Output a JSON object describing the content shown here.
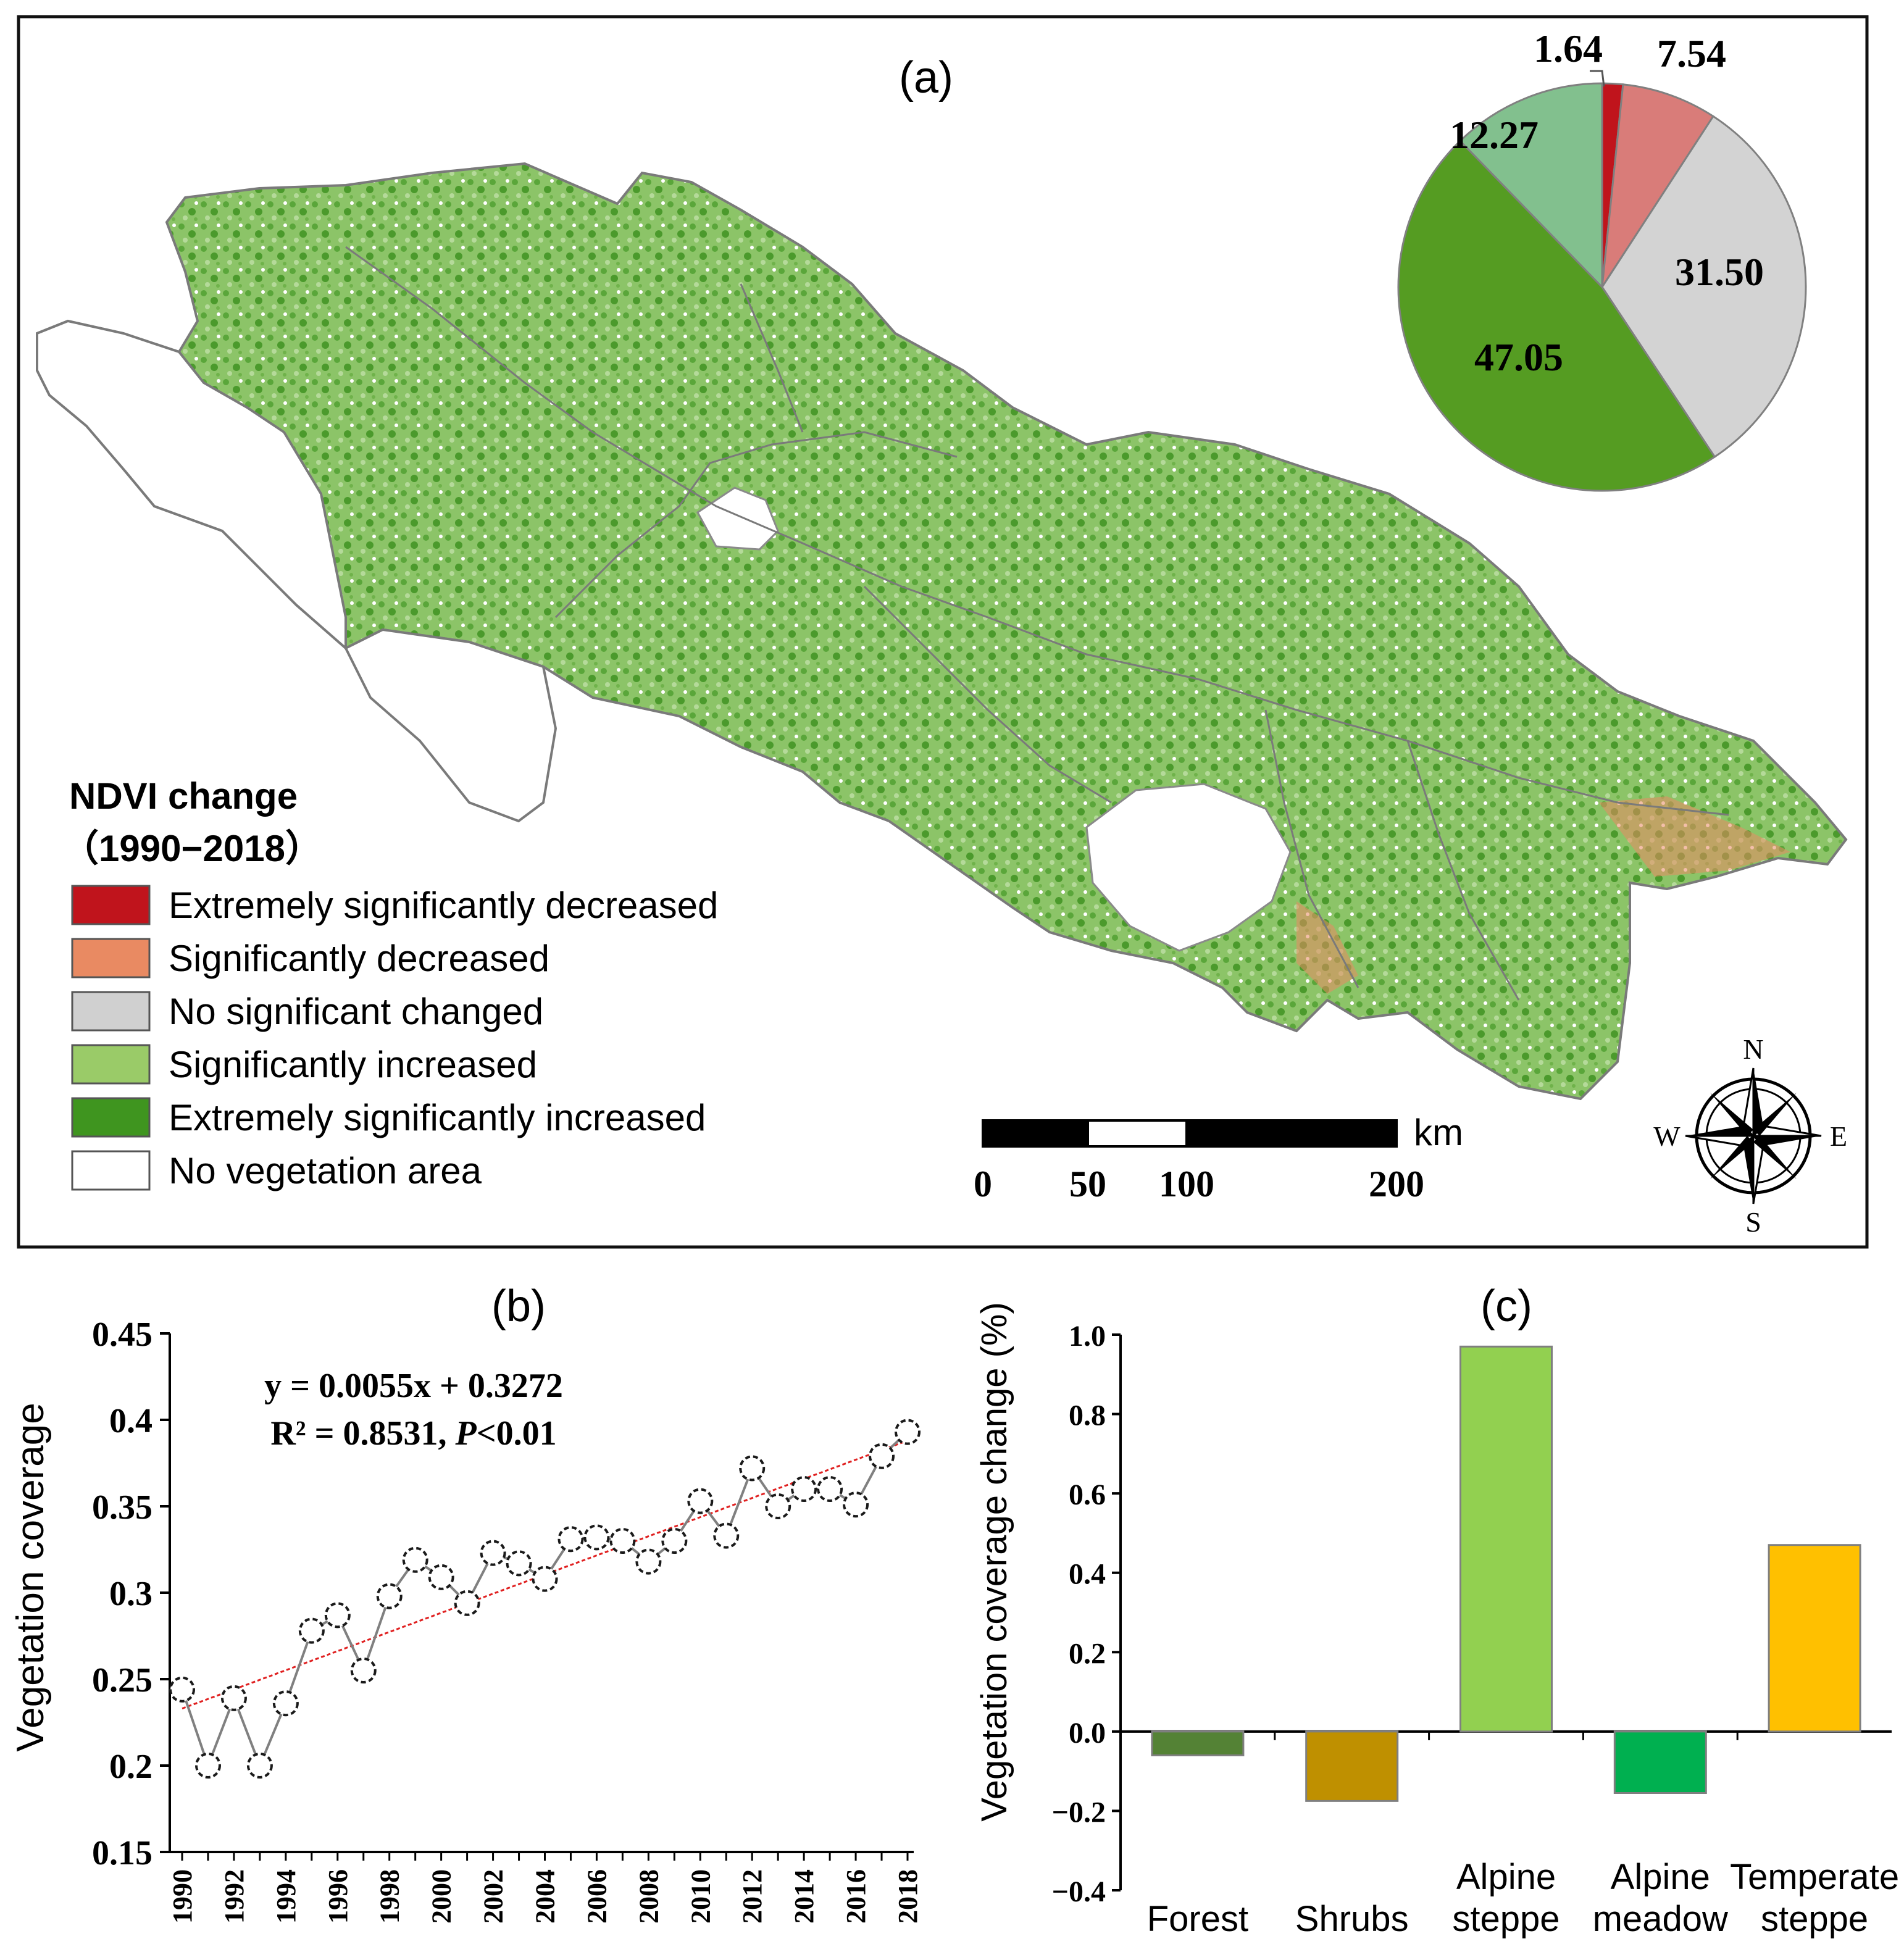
{
  "panel_a": {
    "label": "(a)",
    "legend": {
      "title_line1": "NDVI change",
      "title_line2": "（1990−2018）",
      "items": [
        {
          "label": "Extremely significantly decreased",
          "color": "#c0141c"
        },
        {
          "label": "Significantly decreased",
          "color": "#e98a62"
        },
        {
          "label": "No significant changed",
          "color": "#d0d0d0"
        },
        {
          "label": "Significantly increased",
          "color": "#9acb68"
        },
        {
          "label": "Extremely significantly increased",
          "color": "#3f951f"
        },
        {
          "label": "No vegetation area",
          "color": "#ffffff"
        }
      ]
    },
    "scalebar": {
      "unit": "km",
      "ticks": [
        "0",
        "50",
        "100",
        "200"
      ]
    },
    "compass": {
      "n": "N",
      "s": "S",
      "e": "E",
      "w": "W"
    },
    "colors": {
      "water": "#ffffff",
      "boundary": "#7a7a7a"
    }
  },
  "chart_data": [
    {
      "type": "pie",
      "panel": "a",
      "labels": [
        "1.64",
        "7.54",
        "31.50",
        "47.05",
        "12.27"
      ],
      "values": [
        1.64,
        7.54,
        31.5,
        47.05,
        12.27
      ],
      "colors": [
        "#c0141c",
        "#d97c79",
        "#d3d3d3",
        "#559c22",
        "#82c08e"
      ]
    },
    {
      "type": "scatter",
      "panel": "b",
      "title": "(b)",
      "ylabel": "Vegetation coverage",
      "x": [
        1990,
        1991,
        1992,
        1993,
        1994,
        1995,
        1996,
        1997,
        1998,
        1999,
        2000,
        2001,
        2002,
        2003,
        2004,
        2005,
        2006,
        2007,
        2008,
        2009,
        2010,
        2011,
        2012,
        2013,
        2014,
        2015,
        2016,
        2017,
        2018
      ],
      "y": [
        0.244,
        0.2,
        0.239,
        0.2,
        0.236,
        0.278,
        0.287,
        0.255,
        0.298,
        0.319,
        0.309,
        0.294,
        0.323,
        0.317,
        0.308,
        0.331,
        0.332,
        0.33,
        0.318,
        0.33,
        0.353,
        0.333,
        0.372,
        0.35,
        0.36,
        0.36,
        0.351,
        0.379,
        0.393
      ],
      "xticks": [
        "1990",
        "1992",
        "1994",
        "1996",
        "1998",
        "2000",
        "2002",
        "2004",
        "2006",
        "2008",
        "2010",
        "2012",
        "2014",
        "2016",
        "2018"
      ],
      "yticks": [
        "0.15",
        "0.2",
        "0.25",
        "0.3",
        "0.35",
        "0.4",
        "0.45"
      ],
      "ylim": [
        0.15,
        0.45
      ],
      "xlim": [
        1990,
        2018
      ],
      "trend": {
        "slope": 0.0055,
        "intercept": 0.3272
      },
      "equation": "y = 0.0055x + 0.3272",
      "r2": "R² = 0.8531, ",
      "p_symbol": "P",
      "p_value": "<0.01",
      "colors": {
        "points": "#1a1a1a",
        "line": "#808080",
        "trend": "#e02020"
      }
    },
    {
      "type": "bar",
      "panel": "c",
      "title": "(c)",
      "ylabel": "Vegetation coverage change (%)",
      "categories": [
        [
          "Forest"
        ],
        [
          "Shrubs"
        ],
        [
          "Alpine",
          "steppe"
        ],
        [
          "Alpine",
          "meadow"
        ],
        [
          "Temperate",
          "steppe"
        ]
      ],
      "values": [
        -0.06,
        -0.175,
        0.97,
        -0.155,
        0.47
      ],
      "colors": [
        "#548235",
        "#bf9000",
        "#92d050",
        "#00b050",
        "#ffc000"
      ],
      "yticks": [
        "−0.4",
        "−0.2",
        "0.0",
        "0.2",
        "0.4",
        "0.6",
        "0.8",
        "1.0"
      ],
      "ylim": [
        -0.4,
        1.0
      ]
    }
  ]
}
